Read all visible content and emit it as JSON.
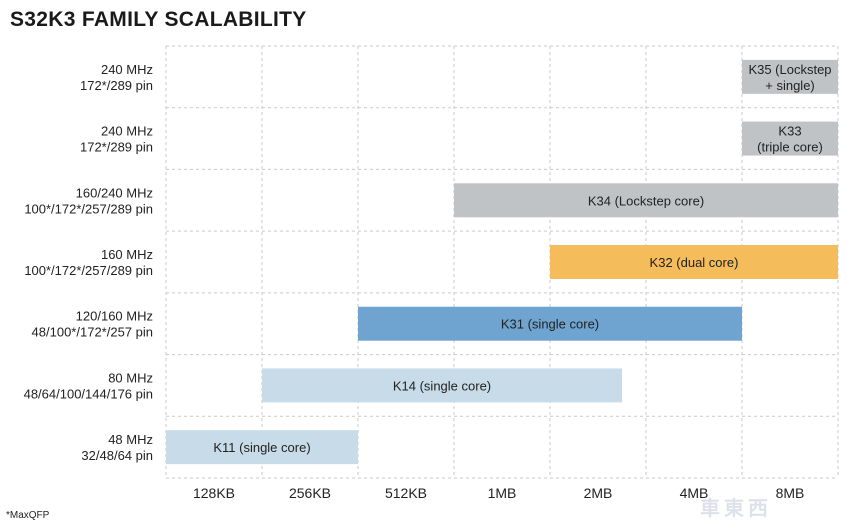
{
  "chart_data": {
    "type": "bar",
    "title": "S32K3 FAMILY SCALABILITY",
    "footnote": "*MaxQFP",
    "watermark": "車東西",
    "x_ticks": [
      "128KB",
      "256KB",
      "512KB",
      "1MB",
      "2MB",
      "4MB",
      "8MB"
    ],
    "rows": [
      {
        "label_lines": [
          "240 MHz",
          "172*/289 pin"
        ],
        "bar": {
          "name": "K35 (Lockstep + single)",
          "label_lines": [
            "K35 (Lockstep",
            "+ single)"
          ],
          "start": 6,
          "end": 7,
          "color": "#bfc3c6"
        }
      },
      {
        "label_lines": [
          "240 MHz",
          "172*/289 pin"
        ],
        "bar": {
          "name": "K33 (triple core)",
          "label_lines": [
            "K33",
            "(triple core)"
          ],
          "start": 6,
          "end": 7,
          "color": "#bfc3c6"
        }
      },
      {
        "label_lines": [
          "160/240 MHz",
          "100*/172*/257/289 pin"
        ],
        "bar": {
          "name": "K34 (Lockstep core)",
          "label_lines": [
            "K34 (Lockstep core)"
          ],
          "start": 3,
          "end": 7,
          "color": "#bfc3c6"
        }
      },
      {
        "label_lines": [
          "160 MHz",
          "100*/172*/257/289 pin"
        ],
        "bar": {
          "name": "K32 (dual core)",
          "label_lines": [
            "K32 (dual core)"
          ],
          "start": 4,
          "end": 7,
          "color": "#f5bc5c"
        }
      },
      {
        "label_lines": [
          "120/160 MHz",
          "48/100*/172*/257 pin"
        ],
        "bar": {
          "name": "K31 (single core)",
          "label_lines": [
            "K31 (single core)"
          ],
          "start": 2,
          "end": 6,
          "color": "#6ea4cf"
        }
      },
      {
        "label_lines": [
          "80 MHz",
          "48/64/100/144/176 pin"
        ],
        "bar": {
          "name": "K14 (single core)",
          "label_lines": [
            "K14 (single core)"
          ],
          "start": 1,
          "end": 4.75,
          "color": "#c7dce8"
        }
      },
      {
        "label_lines": [
          "48 MHz",
          "32/48/64 pin"
        ],
        "bar": {
          "name": "K11 (single core)",
          "label_lines": [
            "K11 (single core)"
          ],
          "start": 0,
          "end": 2,
          "color": "#c7dce8"
        }
      }
    ]
  }
}
